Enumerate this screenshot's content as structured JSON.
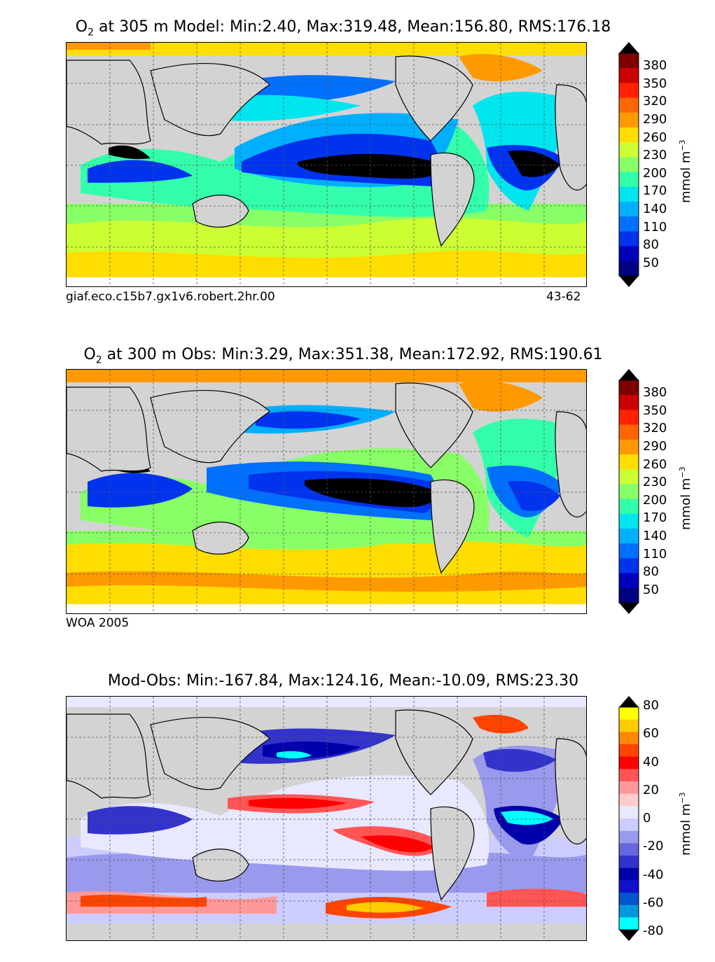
{
  "panels": [
    {
      "id": "model",
      "title_prefix": "O",
      "title_sub": "2",
      "title_rest": " at 305 m Model: Min:2.40, Max:319.48, Mean:156.80, RMS:176.18",
      "footer_left": "giaf.eco.c15b7.gx1v6.robert.2hr.00",
      "footer_right": "43-62",
      "colorbar": {
        "ticks": [
          "380",
          "350",
          "320",
          "290",
          "260",
          "230",
          "200",
          "170",
          "140",
          "110",
          "80",
          "50"
        ],
        "unit_main": "mmol m",
        "unit_sup": "−3",
        "colors": [
          "#7f0000",
          "#cc0000",
          "#ff2200",
          "#ff6600",
          "#ff9900",
          "#ffdd00",
          "#ccff33",
          "#88ff66",
          "#33ffaa",
          "#00e5ee",
          "#00b0ff",
          "#0070ff",
          "#0033ee",
          "#0000bb",
          "#000080"
        ],
        "extend_top": "#000000",
        "extend_bottom": "#000000"
      }
    },
    {
      "id": "obs",
      "title_prefix": "O",
      "title_sub": "2",
      "title_rest": " at 300 m Obs: Min:3.29, Max:351.38, Mean:172.92, RMS:190.61",
      "footer_left": "WOA 2005",
      "colorbar": {
        "ticks": [
          "380",
          "350",
          "320",
          "290",
          "260",
          "230",
          "200",
          "170",
          "140",
          "110",
          "80",
          "50"
        ],
        "unit_main": "mmol m",
        "unit_sup": "−3",
        "colors": [
          "#7f0000",
          "#cc0000",
          "#ff2200",
          "#ff6600",
          "#ff9900",
          "#ffdd00",
          "#ccff33",
          "#88ff66",
          "#33ffaa",
          "#00e5ee",
          "#00b0ff",
          "#0070ff",
          "#0033ee",
          "#0000bb",
          "#000080"
        ],
        "extend_top": "#000000",
        "extend_bottom": "#000000"
      }
    },
    {
      "id": "diff",
      "title": "Mod-Obs: Min:-167.84, Max:124.16, Mean:-10.09, RMS:23.30",
      "colorbar": {
        "ticks": [
          "80",
          "60",
          "40",
          "20",
          "0",
          "-20",
          "-40",
          "-60",
          "-80"
        ],
        "unit_main": "mmol m",
        "unit_sup": "−3",
        "colors": [
          "#ffff00",
          "#ffcc00",
          "#ff8800",
          "#ff4400",
          "#ff0000",
          "#ff5555",
          "#ff9999",
          "#ffcccc",
          "#e8e8ff",
          "#ccccff",
          "#9999ee",
          "#6666dd",
          "#3333cc",
          "#0000aa",
          "#1111cc",
          "#0055cc",
          "#0099dd",
          "#00ffff"
        ],
        "extend_top": "#000000",
        "extend_bottom": "#000000"
      }
    }
  ],
  "colors": {
    "land": "#d3d3d3",
    "grid": "#555555"
  }
}
